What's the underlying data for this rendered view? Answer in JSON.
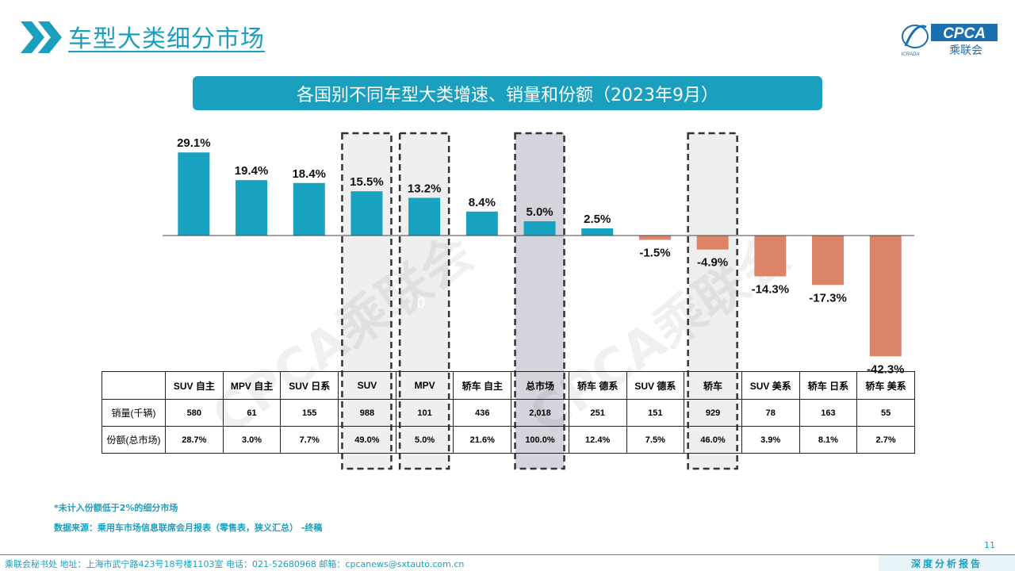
{
  "header": {
    "title": "车型大类细分市场",
    "logo_text": "CPCA",
    "logo_subtext": "乘联会",
    "logo_small": "ICRADA"
  },
  "chart_banner": "各国别不同车型大类增速、销量和份额（2023年9月）",
  "watermark": "CPCA乘联会",
  "stray_label": "0",
  "colors": {
    "accent": "#1a9fbf",
    "positive": "#17a2c0",
    "negative": "#db8468",
    "highlight_light": "#efefef",
    "highlight_dark": "#d4d4dc"
  },
  "chart_data": {
    "type": "bar",
    "title": "各国别不同车型大类增速、销量和份额（2023年9月）",
    "categories": [
      "SUV 自主",
      "MPV 自主",
      "SUV 日系",
      "SUV",
      "MPV",
      "轿车 自主",
      "总市场",
      "轿车 德系",
      "SUV 德系",
      "轿车",
      "SUV 美系",
      "轿车 日系",
      "轿车 美系"
    ],
    "values": [
      29.1,
      19.4,
      18.4,
      15.5,
      13.2,
      8.4,
      5.0,
      2.5,
      -1.5,
      -4.9,
      -14.3,
      -17.3,
      -42.3
    ],
    "value_labels": [
      "29.1%",
      "19.4%",
      "18.4%",
      "15.5%",
      "13.2%",
      "8.4%",
      "5.0%",
      "2.5%",
      "-1.5%",
      "-4.9%",
      "-14.3%",
      "-17.3%",
      "-42.3%"
    ],
    "highlighted": [
      "SUV",
      "MPV",
      "总市场",
      "轿车"
    ],
    "ylim": [
      -45,
      32
    ],
    "grid": false,
    "legend": "none"
  },
  "table": {
    "row_headers": [
      "销量(千辆)",
      "份额(总市场)"
    ],
    "sales": [
      "580",
      "61",
      "155",
      "988",
      "101",
      "436",
      "2,018",
      "251",
      "151",
      "929",
      "78",
      "163",
      "55"
    ],
    "share": [
      "28.7%",
      "3.0%",
      "7.7%",
      "49.0%",
      "5.0%",
      "21.6%",
      "100.0%",
      "12.4%",
      "7.5%",
      "46.0%",
      "3.9%",
      "8.1%",
      "2.7%"
    ]
  },
  "footnotes": {
    "note": "*未计入份额低于2%的细分市场",
    "source": "数据来源：乘用车市场信息联席会月报表（零售表，狭义汇总）  -终稿"
  },
  "page_number": "11",
  "footer": {
    "info": "乘联会秘书处    地址：上海市武宁路423号18号楼1103室    电话：021-52680968    邮箱：cpcanews@sxtauto.com.cn",
    "report": "深度分析报告"
  }
}
